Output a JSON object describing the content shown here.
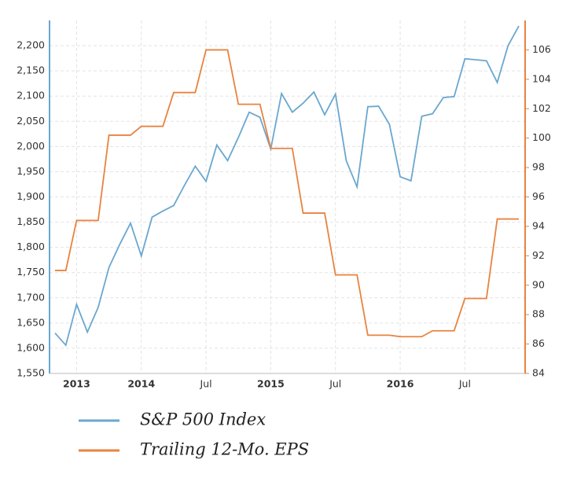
{
  "chart_data": {
    "type": "line",
    "categories": [
      null,
      null,
      "2013",
      null,
      null,
      null,
      null,
      null,
      "2014",
      null,
      null,
      null,
      null,
      null,
      "Jul",
      null,
      null,
      null,
      null,
      null,
      "2015",
      null,
      null,
      null,
      null,
      null,
      "Jul",
      null,
      null,
      null,
      null,
      null,
      "2016",
      null,
      null,
      null,
      null,
      null,
      "Jul",
      null,
      null,
      null,
      null,
      null
    ],
    "series": [
      {
        "name": "S&P 500 Index",
        "color": "#6aa7cf",
        "axis": "y",
        "values": [
          1630,
          1606,
          1687,
          1632,
          1681,
          1760,
          1806,
          1848,
          1783,
          1860,
          1872,
          1883,
          1923,
          1961,
          1931,
          2003,
          1972,
          2018,
          2068,
          2058,
          1995,
          2105,
          2068,
          2086,
          2108,
          2063,
          2104,
          1972,
          1920,
          2079,
          2080,
          2044,
          1940,
          1932,
          2060,
          2065,
          2097,
          2099,
          2174,
          2172,
          2170,
          2127,
          2200,
          2239
        ]
      },
      {
        "name": "Trailing 12-Mo. EPS",
        "color": "#e8833f",
        "axis": "y2",
        "values": [
          91.0,
          91.0,
          94.4,
          94.4,
          94.4,
          100.2,
          100.2,
          100.2,
          100.8,
          100.8,
          100.8,
          103.1,
          103.1,
          103.1,
          106.0,
          106.0,
          106.0,
          102.3,
          102.3,
          102.3,
          99.3,
          99.3,
          99.3,
          94.9,
          94.9,
          94.9,
          90.7,
          90.7,
          90.7,
          86.6,
          86.6,
          86.6,
          86.5,
          86.5,
          86.5,
          86.9,
          86.9,
          86.9,
          89.1,
          89.1,
          89.1,
          94.5,
          94.5,
          94.5
        ]
      }
    ],
    "ylim": [
      1550,
      2250
    ],
    "yticks": [
      {
        "value": 1550,
        "label": "1,550"
      },
      {
        "value": 1600,
        "label": "1,600"
      },
      {
        "value": 1650,
        "label": "1,650"
      },
      {
        "value": 1700,
        "label": "1,700"
      },
      {
        "value": 1750,
        "label": "1,750"
      },
      {
        "value": 1800,
        "label": "1,800"
      },
      {
        "value": 1850,
        "label": "1,850"
      },
      {
        "value": 1900,
        "label": "1,900"
      },
      {
        "value": 1950,
        "label": "1,950"
      },
      {
        "value": 2000,
        "label": "2,000"
      },
      {
        "value": 2050,
        "label": "2,050"
      },
      {
        "value": 2100,
        "label": "2,100"
      },
      {
        "value": 2150,
        "label": "2,150"
      },
      {
        "value": 2200,
        "label": "2,200"
      }
    ],
    "y2lim": [
      84,
      108
    ],
    "y2ticks": [
      84,
      86,
      88,
      90,
      92,
      94,
      96,
      98,
      100,
      102,
      104,
      106
    ],
    "grid": true
  }
}
